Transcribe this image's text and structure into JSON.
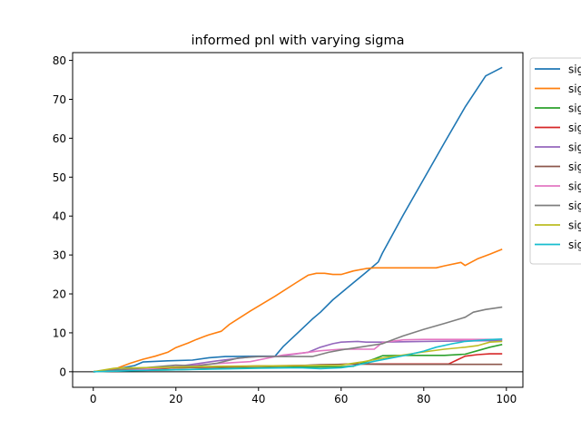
{
  "chart_data": {
    "type": "line",
    "title": "informed pnl with varying sigma",
    "xlabel": "",
    "ylabel": "",
    "xlim": [
      -5,
      104
    ],
    "ylim": [
      -4,
      82
    ],
    "xticks": [
      0,
      20,
      40,
      60,
      80,
      100
    ],
    "yticks": [
      0,
      10,
      20,
      30,
      40,
      50,
      60,
      70,
      80
    ],
    "hline": 0,
    "grid": false,
    "legend_position": "outside-right",
    "series": [
      {
        "name": "sig",
        "color": "#1f77b4",
        "points": [
          [
            0,
            0
          ],
          [
            5,
            0.6
          ],
          [
            10,
            1.6
          ],
          [
            12,
            2.5
          ],
          [
            18,
            2.8
          ],
          [
            24,
            3
          ],
          [
            28,
            3.6
          ],
          [
            32,
            3.9
          ],
          [
            40,
            4
          ],
          [
            44,
            4
          ],
          [
            46,
            6.5
          ],
          [
            50,
            10.5
          ],
          [
            53,
            13.5
          ],
          [
            55,
            15.3
          ],
          [
            58,
            18.5
          ],
          [
            62,
            22
          ],
          [
            66,
            25.5
          ],
          [
            69,
            28.2
          ],
          [
            70,
            30.5
          ],
          [
            75,
            40.2
          ],
          [
            80,
            49.5
          ],
          [
            85,
            58.8
          ],
          [
            90,
            68
          ],
          [
            95,
            76
          ],
          [
            99,
            78.2
          ]
        ]
      },
      {
        "name": "sig",
        "color": "#ff7f0e",
        "points": [
          [
            0,
            0
          ],
          [
            3,
            0.3
          ],
          [
            6,
            1
          ],
          [
            9,
            2.2
          ],
          [
            12,
            3.2
          ],
          [
            15,
            4
          ],
          [
            18,
            5
          ],
          [
            20,
            6.2
          ],
          [
            23,
            7.4
          ],
          [
            25,
            8.3
          ],
          [
            27,
            9.1
          ],
          [
            28,
            9.5
          ],
          [
            31,
            10.4
          ],
          [
            33,
            12.2
          ],
          [
            38,
            15.6
          ],
          [
            44,
            19.4
          ],
          [
            49,
            22.8
          ],
          [
            52,
            24.8
          ],
          [
            54,
            25.3
          ],
          [
            56,
            25.3
          ],
          [
            58,
            25
          ],
          [
            60,
            25
          ],
          [
            63,
            25.9
          ],
          [
            66,
            26.5
          ],
          [
            68,
            26.7
          ],
          [
            83,
            26.7
          ],
          [
            85,
            27.2
          ],
          [
            89,
            28.1
          ],
          [
            90,
            27.3
          ],
          [
            93,
            29
          ],
          [
            96,
            30.2
          ],
          [
            99,
            31.5
          ]
        ]
      },
      {
        "name": "sig",
        "color": "#2ca02c",
        "points": [
          [
            0,
            0
          ],
          [
            8,
            0.3
          ],
          [
            20,
            0.5
          ],
          [
            30,
            0.8
          ],
          [
            40,
            1
          ],
          [
            50,
            1.2
          ],
          [
            60,
            1.3
          ],
          [
            63,
            1.4
          ],
          [
            65,
            2.2
          ],
          [
            68,
            3.3
          ],
          [
            70,
            4.1
          ],
          [
            75,
            4.2
          ],
          [
            85,
            4.2
          ],
          [
            90,
            4.5
          ],
          [
            93,
            5.4
          ],
          [
            96,
            6.3
          ],
          [
            99,
            7
          ]
        ]
      },
      {
        "name": "sig",
        "color": "#d62728",
        "points": [
          [
            0,
            0
          ],
          [
            10,
            0.5
          ],
          [
            20,
            1
          ],
          [
            30,
            1.2
          ],
          [
            40,
            1.5
          ],
          [
            50,
            1.6
          ],
          [
            58,
            1.8
          ],
          [
            62,
            2
          ],
          [
            70,
            2
          ],
          [
            80,
            2
          ],
          [
            86,
            2
          ],
          [
            88,
            3
          ],
          [
            90,
            4
          ],
          [
            93,
            4.4
          ],
          [
            96,
            4.6
          ],
          [
            99,
            4.6
          ]
        ]
      },
      {
        "name": "sig",
        "color": "#9467bd",
        "points": [
          [
            0,
            0
          ],
          [
            10,
            0.8
          ],
          [
            20,
            1.3
          ],
          [
            30,
            2.8
          ],
          [
            38,
            3.8
          ],
          [
            45,
            4
          ],
          [
            52,
            5
          ],
          [
            55,
            6.3
          ],
          [
            58,
            7.2
          ],
          [
            60,
            7.6
          ],
          [
            64,
            7.8
          ],
          [
            66,
            7.6
          ],
          [
            70,
            7.6
          ],
          [
            75,
            7.7
          ],
          [
            80,
            7.8
          ],
          [
            90,
            7.9
          ],
          [
            99,
            8
          ]
        ]
      },
      {
        "name": "sig",
        "color": "#8c564b",
        "points": [
          [
            0,
            0
          ],
          [
            10,
            0.5
          ],
          [
            20,
            1
          ],
          [
            30,
            1.2
          ],
          [
            40,
            1.4
          ],
          [
            50,
            1.6
          ],
          [
            55,
            1.8
          ],
          [
            60,
            1.9
          ],
          [
            64,
            2
          ],
          [
            70,
            1.9
          ],
          [
            80,
            1.9
          ],
          [
            90,
            1.9
          ],
          [
            99,
            1.9
          ]
        ]
      },
      {
        "name": "sig",
        "color": "#e377c2",
        "points": [
          [
            0,
            0
          ],
          [
            10,
            0.5
          ],
          [
            20,
            1.3
          ],
          [
            30,
            2.1
          ],
          [
            38,
            2.6
          ],
          [
            46,
            4.3
          ],
          [
            52,
            5
          ],
          [
            55,
            5.4
          ],
          [
            60,
            5.8
          ],
          [
            68,
            5.8
          ],
          [
            70,
            7.5
          ],
          [
            75,
            8.2
          ],
          [
            80,
            8.3
          ],
          [
            90,
            8.3
          ],
          [
            99,
            8.3
          ]
        ]
      },
      {
        "name": "sig",
        "color": "#7f7f7f",
        "points": [
          [
            0,
            0
          ],
          [
            10,
            0.8
          ],
          [
            20,
            1.7
          ],
          [
            25,
            1.5
          ],
          [
            30,
            2.2
          ],
          [
            35,
            3.5
          ],
          [
            40,
            3.9
          ],
          [
            53,
            3.9
          ],
          [
            57,
            5
          ],
          [
            60,
            5.6
          ],
          [
            65,
            6.4
          ],
          [
            70,
            7.2
          ],
          [
            75,
            9.2
          ],
          [
            80,
            10.9
          ],
          [
            85,
            12.4
          ],
          [
            90,
            14
          ],
          [
            92,
            15.3
          ],
          [
            95,
            16
          ],
          [
            99,
            16.6
          ]
        ]
      },
      {
        "name": "sig",
        "color": "#bcbd22",
        "points": [
          [
            0,
            0
          ],
          [
            5,
            0.9
          ],
          [
            20,
            1.2
          ],
          [
            30,
            1.4
          ],
          [
            40,
            1.5
          ],
          [
            50,
            1.6
          ],
          [
            60,
            1.7
          ],
          [
            65,
            2.5
          ],
          [
            70,
            3.5
          ],
          [
            75,
            4.3
          ],
          [
            80,
            5.1
          ],
          [
            85,
            5.8
          ],
          [
            90,
            6.3
          ],
          [
            93,
            6.7
          ],
          [
            96,
            7.6
          ],
          [
            99,
            7.8
          ]
        ]
      },
      {
        "name": "sig",
        "color": "#17becf",
        "points": [
          [
            0,
            0
          ],
          [
            10,
            0.3
          ],
          [
            20,
            0.5
          ],
          [
            30,
            0.7
          ],
          [
            40,
            0.9
          ],
          [
            50,
            1
          ],
          [
            55,
            0.8
          ],
          [
            60,
            1
          ],
          [
            63,
            1.5
          ],
          [
            68,
            2.7
          ],
          [
            72,
            3.5
          ],
          [
            76,
            4.3
          ],
          [
            80,
            5.3
          ],
          [
            83,
            6.3
          ],
          [
            87,
            7.2
          ],
          [
            90,
            7.8
          ],
          [
            95,
            8.2
          ],
          [
            99,
            8.4
          ]
        ]
      }
    ]
  }
}
